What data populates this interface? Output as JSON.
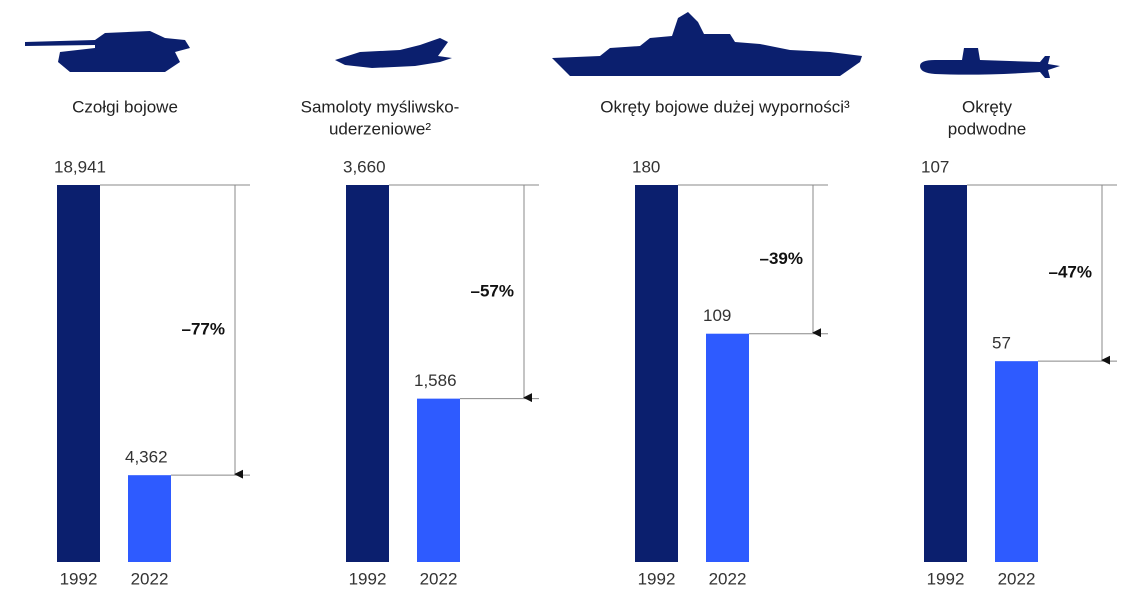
{
  "chart_data": [
    {
      "type": "bar",
      "title": [
        "Czołgi bojowe"
      ],
      "categories": [
        "1992",
        "2022"
      ],
      "values": [
        18941,
        4362
      ],
      "value_labels": [
        "18,941",
        "4,362"
      ],
      "colors": [
        "#0b1f6e",
        "#2e5bff"
      ],
      "annotation": "–77%"
    },
    {
      "type": "bar",
      "title": [
        "Samoloty myśliwsko-",
        "uderzeniowe²"
      ],
      "categories": [
        "1992",
        "2022"
      ],
      "values": [
        3660,
        1586
      ],
      "value_labels": [
        "3,660",
        "1,586"
      ],
      "colors": [
        "#0b1f6e",
        "#2e5bff"
      ],
      "annotation": "–57%"
    },
    {
      "type": "bar",
      "title": [
        "Okręty bojowe dużej wyporności³"
      ],
      "categories": [
        "1992",
        "2022"
      ],
      "values": [
        180,
        109
      ],
      "value_labels": [
        "180",
        "109"
      ],
      "colors": [
        "#0b1f6e",
        "#2e5bff"
      ],
      "annotation": "–39%"
    },
    {
      "type": "bar",
      "title": [
        "Okręty",
        "podwodne"
      ],
      "categories": [
        "1992",
        "2022"
      ],
      "values": [
        107,
        57
      ],
      "value_labels": [
        "107",
        "57"
      ],
      "colors": [
        "#0b1f6e",
        "#2e5bff"
      ],
      "annotation": "–47%"
    }
  ]
}
